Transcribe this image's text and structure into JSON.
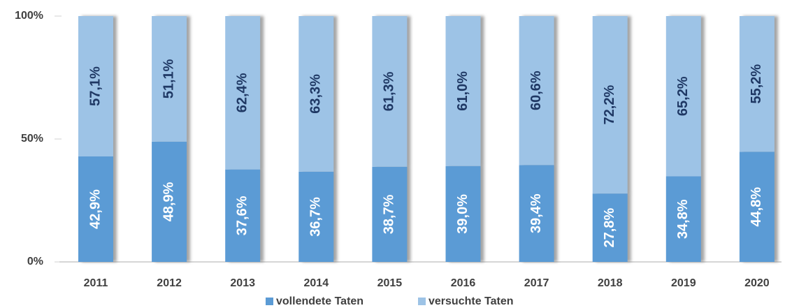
{
  "chart_data": {
    "type": "stacked_bar",
    "categories": [
      "2011",
      "2012",
      "2013",
      "2014",
      "2015",
      "2016",
      "2017",
      "2018",
      "2019",
      "2020"
    ],
    "series": [
      {
        "name": "vollendete Taten",
        "color": "#5b9bd5",
        "values": [
          42.9,
          48.9,
          37.6,
          36.7,
          38.7,
          39.0,
          39.4,
          27.8,
          34.8,
          44.8
        ],
        "value_labels": [
          "42,9%",
          "48,9%",
          "37,6%",
          "36,7%",
          "38,7%",
          "39,0%",
          "39,4%",
          "27,8%",
          "34,8%",
          "44,8%"
        ]
      },
      {
        "name": "versuchte Taten",
        "color": "#9dc3e6",
        "values": [
          57.1,
          51.1,
          62.4,
          63.3,
          61.3,
          61.0,
          60.6,
          72.2,
          65.2,
          55.2
        ],
        "value_labels": [
          "57,1%",
          "51,1%",
          "62,4%",
          "63,3%",
          "61,3%",
          "61,0%",
          "60,6%",
          "72,2%",
          "65,2%",
          "55,2%"
        ]
      }
    ],
    "ylim": [
      0,
      100
    ],
    "yticks": [
      {
        "value": 0,
        "label": "0%"
      },
      {
        "value": 50,
        "label": "50%"
      },
      {
        "value": 100,
        "label": "100%"
      }
    ],
    "legend": "bottom"
  }
}
